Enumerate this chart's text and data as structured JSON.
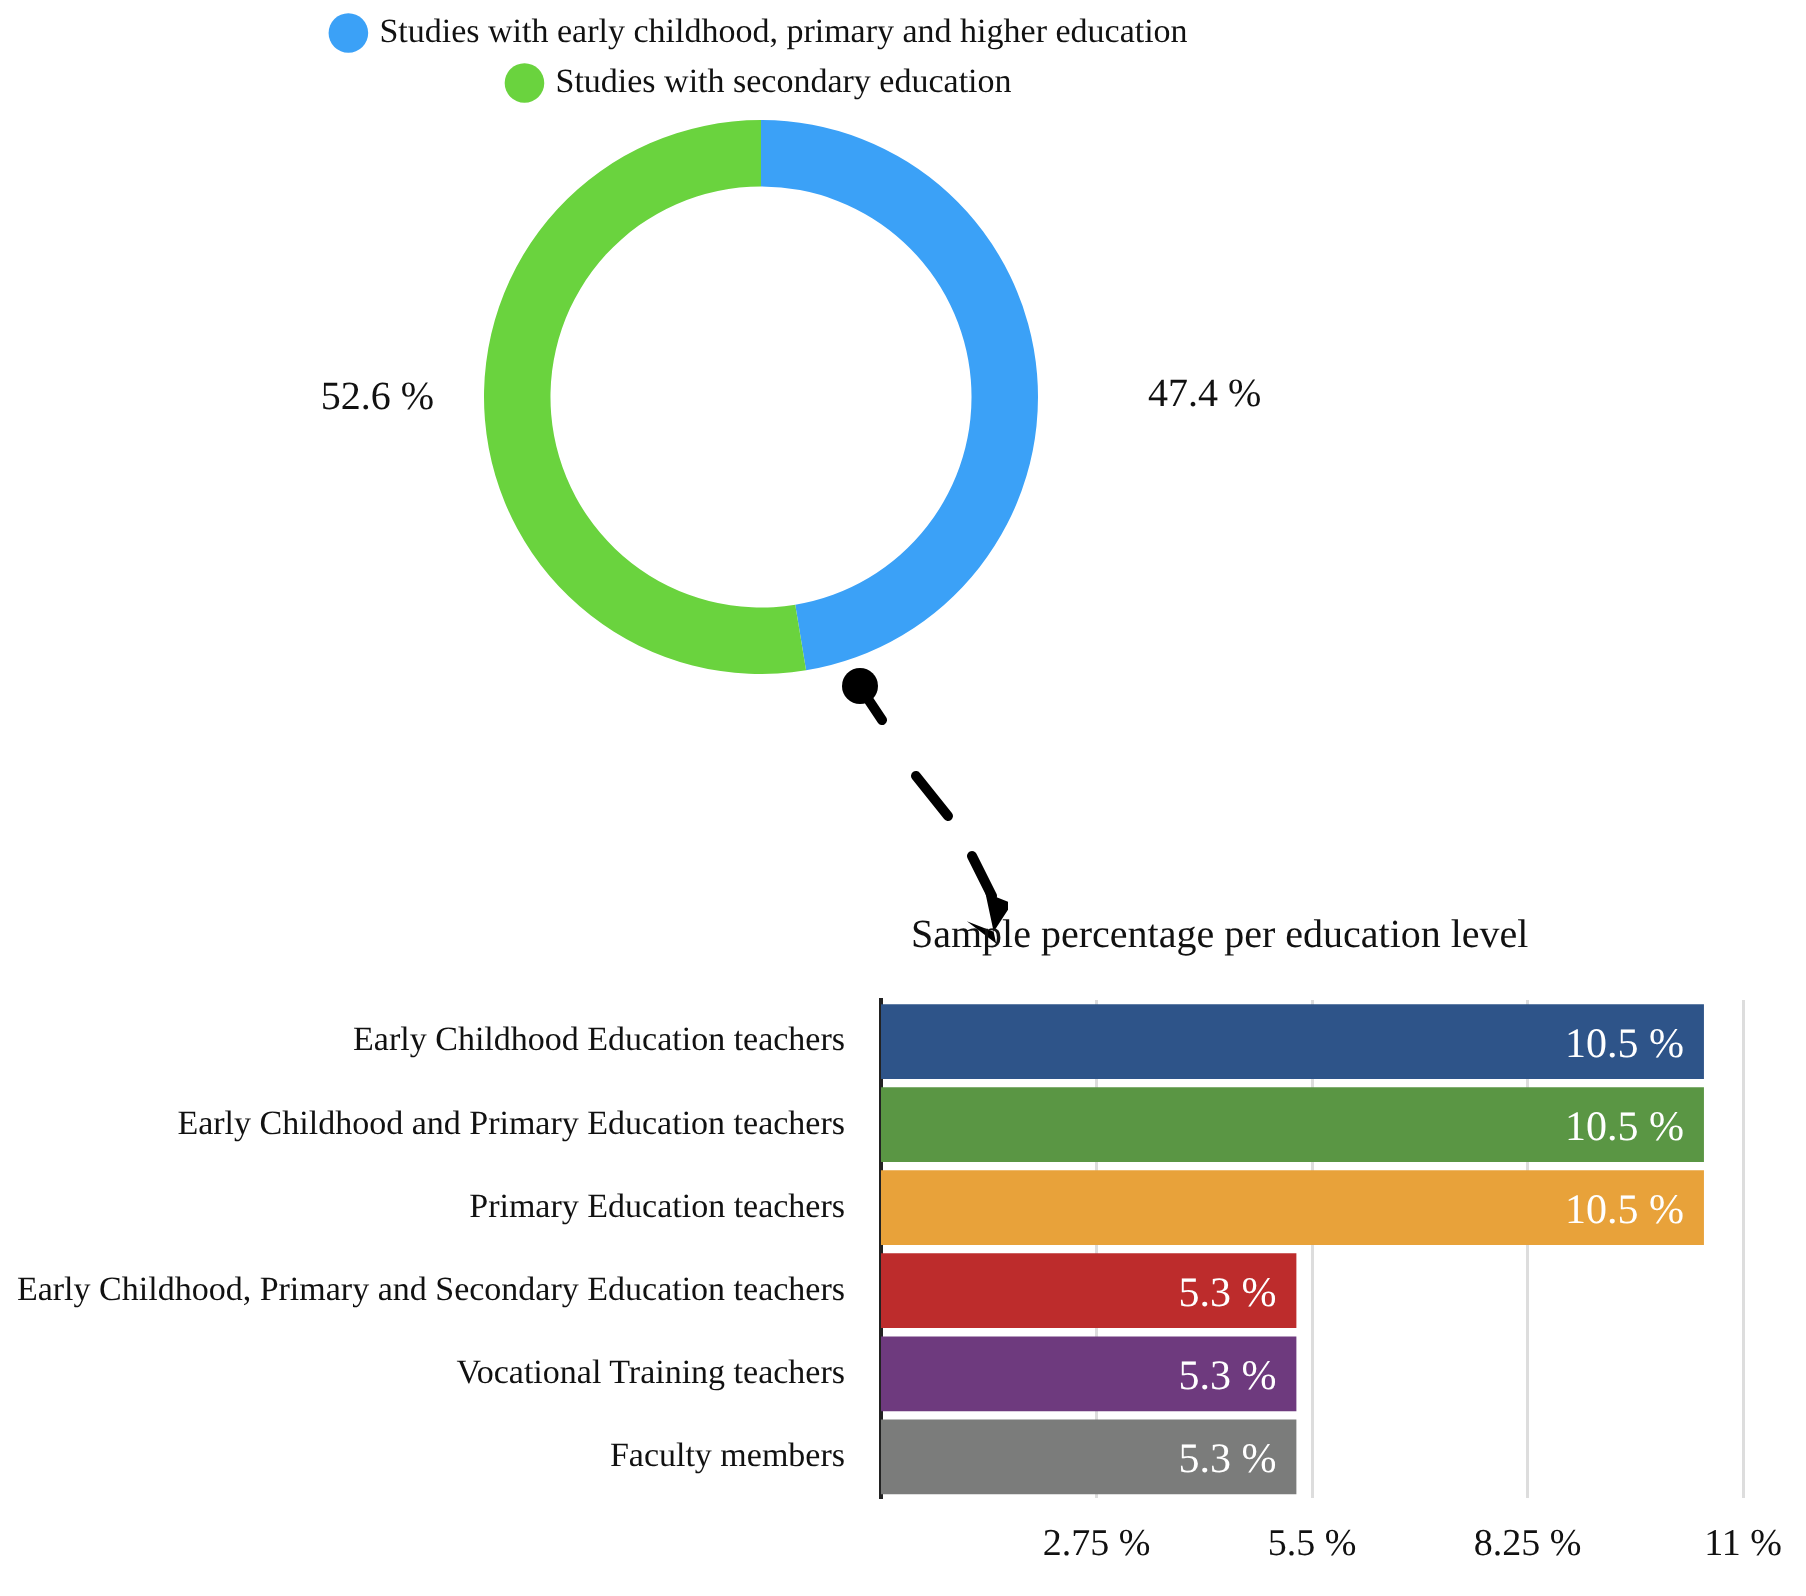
{
  "chart_data": [
    {
      "type": "donut",
      "categories": [
        "Studies with early childhood, primary and higher education",
        "Studies with secondary education"
      ],
      "values": [
        47.4,
        52.6
      ],
      "colors": [
        "#3ba1f7",
        "#6ad33e"
      ],
      "value_labels": [
        "47.4 %",
        "52.6 %"
      ],
      "legend": "top"
    },
    {
      "type": "bar",
      "orientation": "horizontal",
      "title": "Sample percentage per education level",
      "categories": [
        "Early Childhood Education teachers",
        "Early Childhood and Primary Education teachers",
        "Primary Education teachers",
        "Early Childhood, Primary and Secondary Education teachers",
        "Vocational Training teachers",
        "Faculty members"
      ],
      "values": [
        10.5,
        10.5,
        10.5,
        5.3,
        5.3,
        5.3
      ],
      "colors": [
        "#2e5489",
        "#5a9644",
        "#e8a23a",
        "#bd2c2c",
        "#6e3a7e",
        "#7b7c7b"
      ],
      "value_labels": [
        "10.5 %",
        "10.5 %",
        "10.5 %",
        "5.3 %",
        "5.3 %",
        "5.3 %"
      ],
      "xlim": [
        0,
        11
      ],
      "xticks": [
        {
          "value": 2.75,
          "label": "2.75 %"
        },
        {
          "value": 5.5,
          "label": "5.5 %"
        },
        {
          "value": 8.25,
          "label": "8.25 %"
        },
        {
          "value": 11,
          "label": "11 %"
        }
      ],
      "grid": "x",
      "legend": false
    }
  ]
}
